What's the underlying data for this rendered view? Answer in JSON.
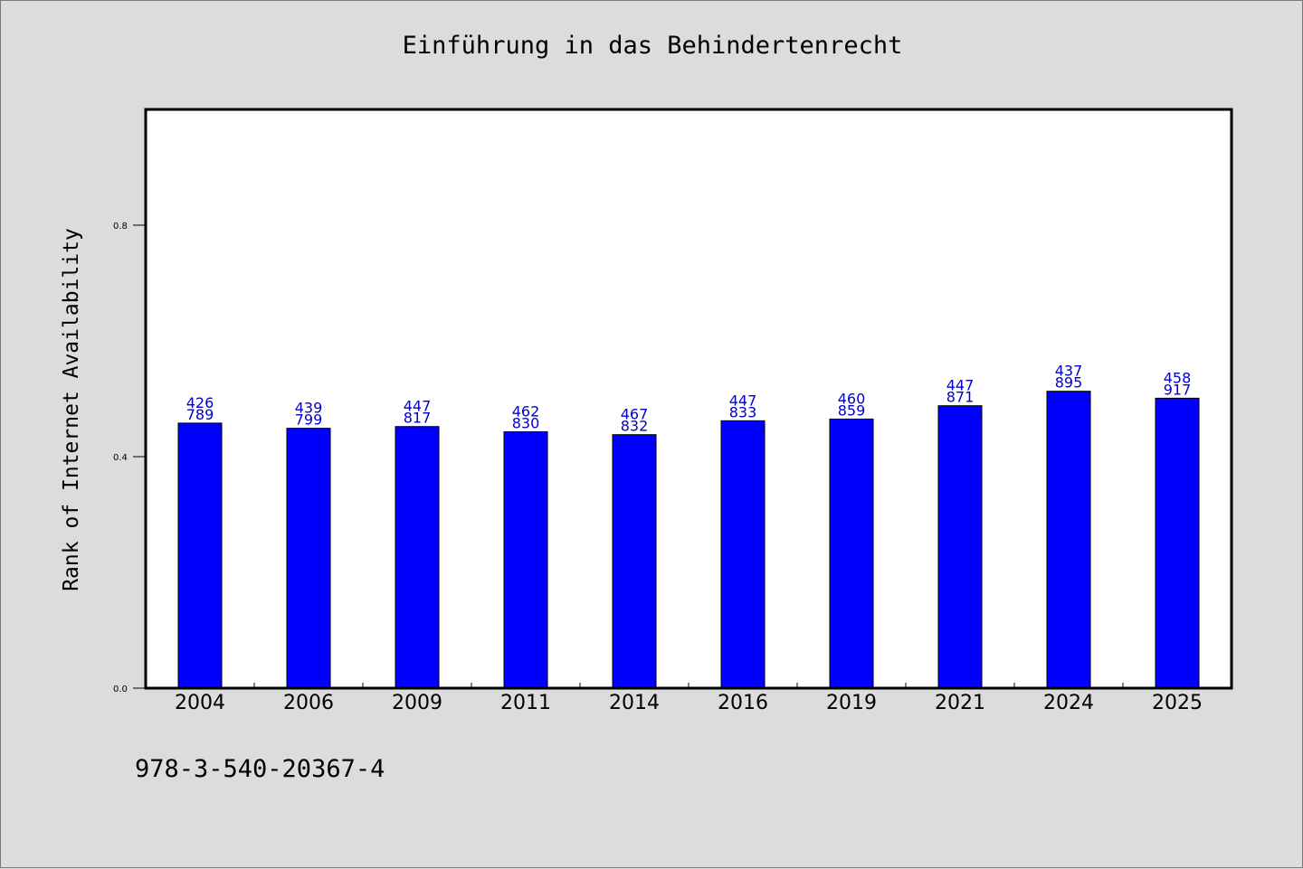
{
  "chart_data": {
    "type": "bar",
    "title": "Einführung in das Behindertenrecht",
    "xlabel": "",
    "ylabel": "Rank of Internet Availability",
    "categories": [
      "2004",
      "2006",
      "2009",
      "2011",
      "2014",
      "2016",
      "2019",
      "2021",
      "2024",
      "2025"
    ],
    "values": [
      0.458,
      0.449,
      0.452,
      0.443,
      0.438,
      0.462,
      0.465,
      0.488,
      0.513,
      0.501
    ],
    "bar_labels_top": [
      "426",
      "439",
      "447",
      "462",
      "467",
      "447",
      "460",
      "447",
      "437",
      "458"
    ],
    "bar_labels_bottom": [
      "789",
      "799",
      "817",
      "830",
      "832",
      "833",
      "859",
      "871",
      "895",
      "917"
    ],
    "yticks": [
      0.0,
      0.4,
      0.8
    ],
    "ytick_labels": [
      "0.0",
      "0.4",
      "0.8"
    ],
    "ylim": [
      0,
      1.0
    ],
    "grid": false,
    "legend": "none",
    "bar_color": "#0000ff",
    "label_color": "#0000cc"
  },
  "footer": {
    "isbn": "978-3-540-20367-4"
  }
}
